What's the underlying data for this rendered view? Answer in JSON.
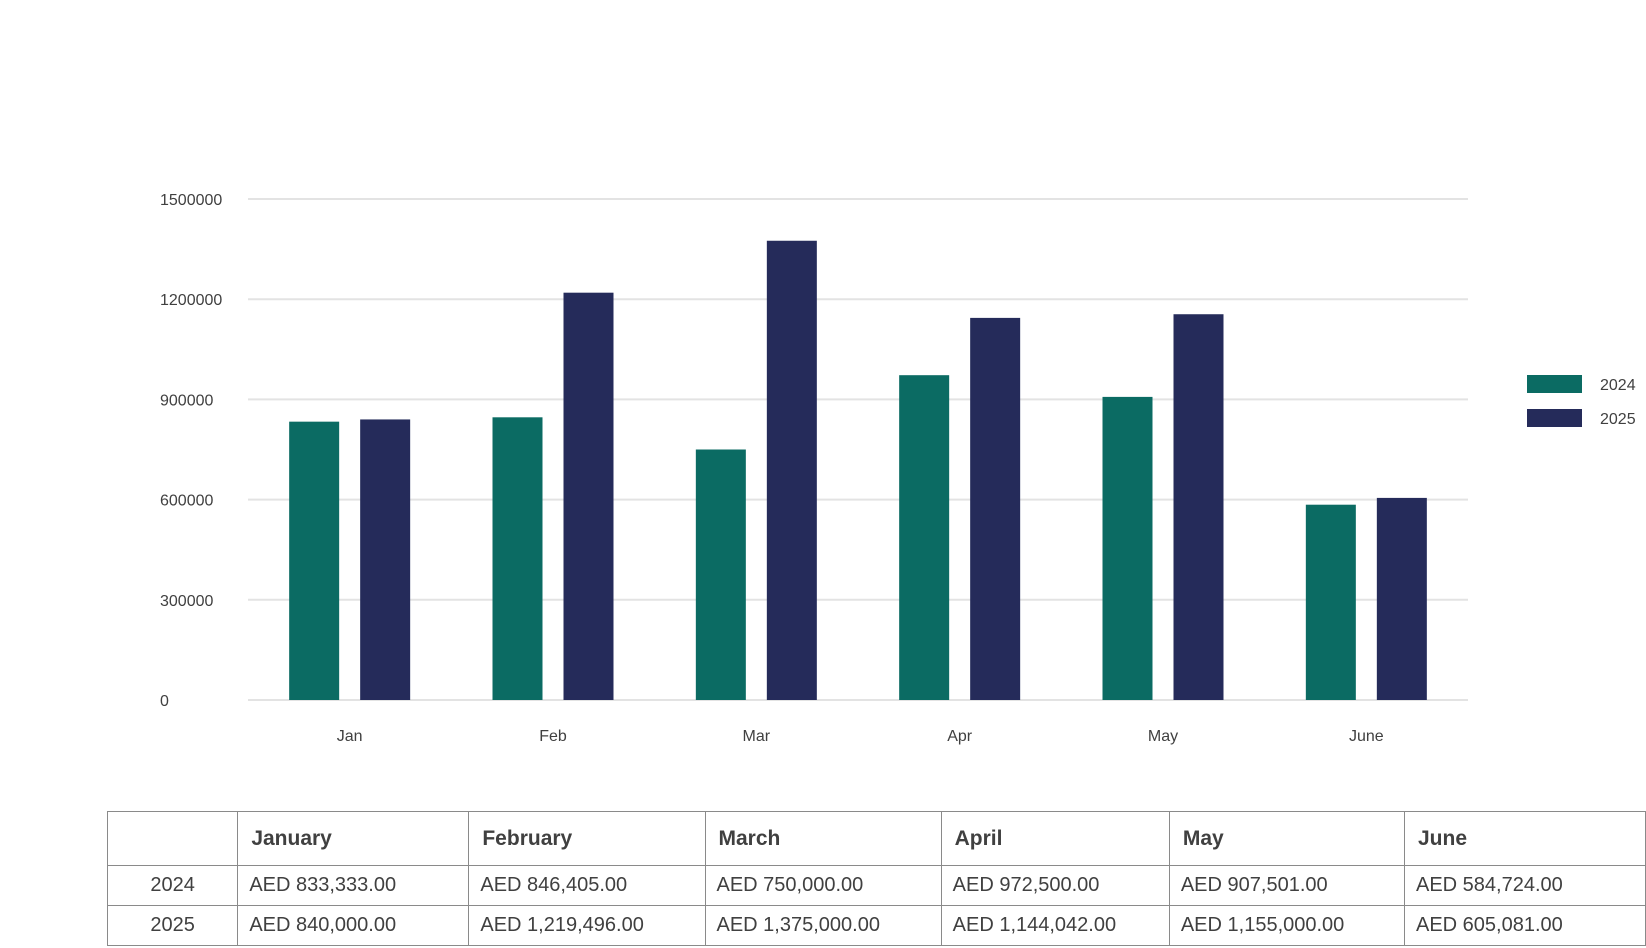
{
  "chart_data": {
    "type": "bar",
    "categories": [
      "Jan",
      "Feb",
      "Mar",
      "Apr",
      "May",
      "June"
    ],
    "series": [
      {
        "name": "2024",
        "color": "#0b6b63",
        "values": [
          833333,
          846405,
          750000,
          972500,
          907501,
          584724
        ]
      },
      {
        "name": "2025",
        "color": "#252b5a",
        "values": [
          840000,
          1219496,
          1375000,
          1144042,
          1155000,
          605081
        ]
      }
    ],
    "yticks": [
      "0",
      "300000",
      "600000",
      "900000",
      "1200000",
      "1500000"
    ],
    "ylim": [
      0,
      1500000
    ],
    "grid": true,
    "legend": "right"
  },
  "table": {
    "headers": [
      "",
      "January",
      "February",
      "March",
      "April",
      "May",
      "June"
    ],
    "rows": [
      {
        "year": "2024",
        "cells": [
          "AED 833,333.00",
          "AED 846,405.00",
          "AED 750,000.00",
          "AED 972,500.00",
          "AED 907,501.00",
          "AED 584,724.00"
        ]
      },
      {
        "year": "2025",
        "cells": [
          "AED 840,000.00",
          "AED 1,219,496.00",
          "AED 1,375,000.00",
          "AED 1,144,042.00",
          "AED 1,155,000.00",
          "AED 605,081.00"
        ]
      }
    ]
  }
}
